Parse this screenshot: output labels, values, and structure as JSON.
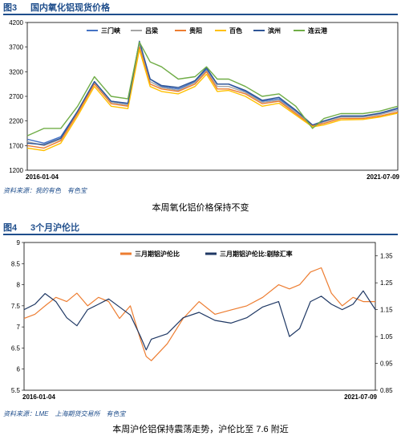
{
  "figure3": {
    "number": "图3",
    "title": "国内氧化铝现货价格",
    "source": "资料来源：我的有色　有色宝",
    "caption": "本周氧化铝价格保持不变"
  },
  "figure4": {
    "number": "图4",
    "title": "3个月沪伦比",
    "source": "资料来源：LME　上海期货交易所　有色宝",
    "caption": "本周沪伦铝保持震荡走势，沪伦比至 7.6 附近"
  },
  "chart_data": [
    {
      "type": "line",
      "ylim": [
        1200,
        4200
      ],
      "yticks": [
        "1200",
        "1700",
        "2200",
        "2700",
        "3200",
        "3700",
        "4200"
      ],
      "x_start_label": "2016-01-04",
      "x_end_label": "2021-07-09",
      "legend_position": "top",
      "x": [
        2016.0,
        2016.25,
        2016.5,
        2016.75,
        2017.0,
        2017.25,
        2017.5,
        2017.67,
        2017.83,
        2018.0,
        2018.25,
        2018.5,
        2018.67,
        2018.83,
        2019.0,
        2019.25,
        2019.5,
        2019.75,
        2020.0,
        2020.25,
        2020.42,
        2020.67,
        2021.0,
        2021.25,
        2021.52
      ],
      "series": [
        {
          "name": "三门峡",
          "color": "#4472c4",
          "values": [
            1830,
            1750,
            1880,
            2400,
            3000,
            2600,
            2550,
            3800,
            3050,
            2900,
            2850,
            3000,
            3250,
            2950,
            2950,
            2800,
            2600,
            2650,
            2400,
            2100,
            2200,
            2300,
            2300,
            2350,
            2450
          ]
        },
        {
          "name": "吕梁",
          "color": "#a5a5a5",
          "values": [
            1780,
            1700,
            1830,
            2380,
            2980,
            2580,
            2520,
            3780,
            3000,
            2880,
            2820,
            2980,
            3220,
            2900,
            2900,
            2780,
            2580,
            2620,
            2380,
            2100,
            2180,
            2280,
            2280,
            2330,
            2420
          ]
        },
        {
          "name": "贵阳",
          "color": "#ed7d31",
          "values": [
            1700,
            1650,
            1800,
            2350,
            2950,
            2550,
            2500,
            3700,
            2950,
            2850,
            2800,
            2950,
            3200,
            2850,
            2850,
            2750,
            2550,
            2600,
            2350,
            2100,
            2150,
            2250,
            2250,
            2300,
            2380
          ]
        },
        {
          "name": "百色",
          "color": "#ffc000",
          "values": [
            1650,
            1600,
            1750,
            2300,
            2900,
            2500,
            2450,
            3650,
            2900,
            2800,
            2750,
            2900,
            3150,
            2800,
            2820,
            2700,
            2500,
            2560,
            2320,
            2080,
            2120,
            2220,
            2230,
            2280,
            2360
          ]
        },
        {
          "name": "滨州",
          "color": "#2f5597",
          "values": [
            1750,
            1720,
            1850,
            2400,
            3000,
            2600,
            2560,
            3820,
            3050,
            2920,
            2880,
            3020,
            3280,
            2950,
            2950,
            2820,
            2620,
            2680,
            2420,
            2120,
            2200,
            2300,
            2300,
            2360,
            2460
          ]
        },
        {
          "name": "连云港",
          "color": "#70ad47",
          "values": [
            1900,
            2050,
            2050,
            2500,
            3100,
            2700,
            2650,
            3800,
            3400,
            3300,
            3050,
            3100,
            3300,
            3050,
            3050,
            2900,
            2700,
            2750,
            2500,
            2050,
            2250,
            2350,
            2350,
            2400,
            2500
          ]
        }
      ]
    },
    {
      "type": "line",
      "ylim": [
        5.5,
        9
      ],
      "yticks": [
        "5.5",
        "6",
        "6.5",
        "7",
        "7.5",
        "8",
        "8.5",
        "9"
      ],
      "y2lim": [
        0.85,
        1.4
      ],
      "y2ticks": [
        "0.85",
        "0.95",
        "1.05",
        "1.15",
        "1.25",
        "1.35"
      ],
      "x_start_label": "2016-01-04",
      "x_end_label": "2021-07-09",
      "legend_position": "top",
      "x": [
        2016.0,
        2016.17,
        2016.33,
        2016.5,
        2016.67,
        2016.83,
        2017.0,
        2017.17,
        2017.33,
        2017.5,
        2017.67,
        2017.83,
        2017.92,
        2018.0,
        2018.25,
        2018.5,
        2018.75,
        2019.0,
        2019.25,
        2019.5,
        2019.75,
        2020.0,
        2020.17,
        2020.33,
        2020.5,
        2020.67,
        2020.83,
        2021.0,
        2021.17,
        2021.33,
        2021.52
      ],
      "series": [
        {
          "name": "三月期铝沪伦比",
          "color": "#ed7d31",
          "axis": "left",
          "values": [
            7.2,
            7.3,
            7.5,
            7.7,
            7.6,
            7.8,
            7.5,
            7.7,
            7.6,
            7.2,
            7.5,
            6.7,
            6.3,
            6.2,
            6.6,
            7.2,
            7.6,
            7.3,
            7.4,
            7.5,
            7.7,
            8.0,
            7.9,
            8.0,
            8.3,
            8.4,
            7.8,
            7.5,
            7.7,
            7.6,
            7.6
          ]
        },
        {
          "name": "三月期铝沪伦比:剔除汇率",
          "color": "#1f3864",
          "axis": "right",
          "values": [
            1.15,
            1.17,
            1.21,
            1.18,
            1.12,
            1.09,
            1.15,
            1.17,
            1.19,
            1.16,
            1.13,
            1.05,
            1.0,
            1.04,
            1.06,
            1.12,
            1.14,
            1.11,
            1.1,
            1.12,
            1.16,
            1.18,
            1.05,
            1.08,
            1.18,
            1.2,
            1.17,
            1.15,
            1.17,
            1.22,
            1.15
          ]
        }
      ]
    }
  ]
}
